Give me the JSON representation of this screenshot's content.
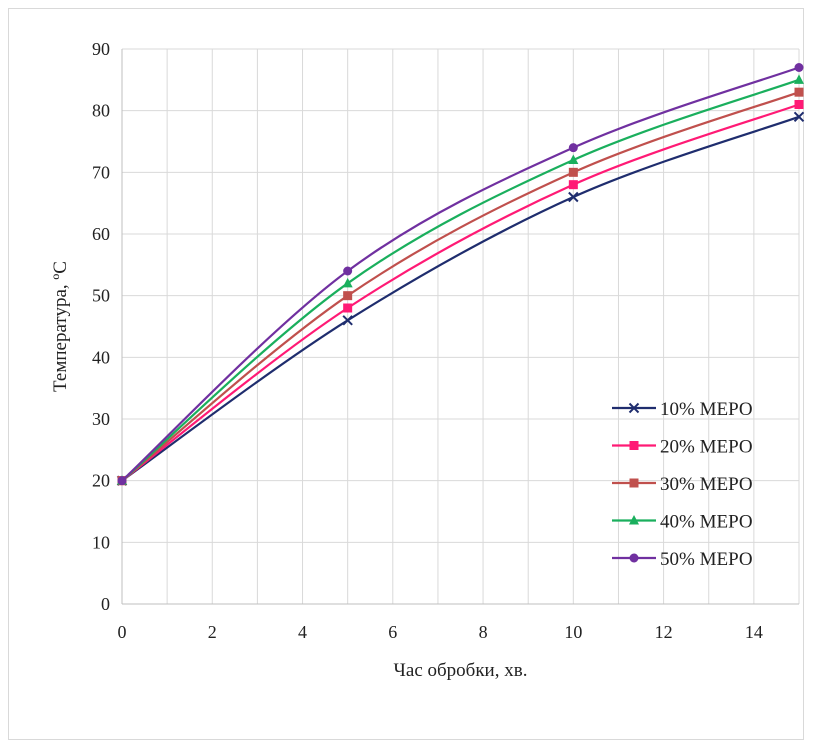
{
  "chart_data": {
    "type": "line",
    "xlabel": "Час обробки, хв.",
    "ylabel": "Температура, ºС",
    "xlim": [
      0,
      15
    ],
    "ylim": [
      0,
      90
    ],
    "x_ticks": [
      0,
      2,
      4,
      6,
      8,
      10,
      12,
      14
    ],
    "y_ticks": [
      0,
      10,
      20,
      30,
      40,
      50,
      60,
      70,
      80,
      90
    ],
    "grid": true,
    "legend_position": "bottom-right",
    "x": [
      0,
      5,
      10,
      15
    ],
    "series": [
      {
        "name": "10% МЕРО",
        "values": [
          20,
          46,
          66,
          79
        ],
        "color": "#1f2d6e",
        "marker": "x"
      },
      {
        "name": "20% МЕРО",
        "values": [
          20,
          48,
          68,
          81
        ],
        "color": "#ff1a75",
        "marker": "square"
      },
      {
        "name": "30% МЕРО",
        "values": [
          20,
          50,
          70,
          83
        ],
        "color": "#c0504d",
        "marker": "square"
      },
      {
        "name": "40% МЕРО",
        "values": [
          20,
          52,
          72,
          85
        ],
        "color": "#1aaf5d",
        "marker": "triangle"
      },
      {
        "name": "50% МЕРО",
        "values": [
          20,
          54,
          74,
          87
        ],
        "color": "#7030a0",
        "marker": "circle"
      }
    ]
  }
}
